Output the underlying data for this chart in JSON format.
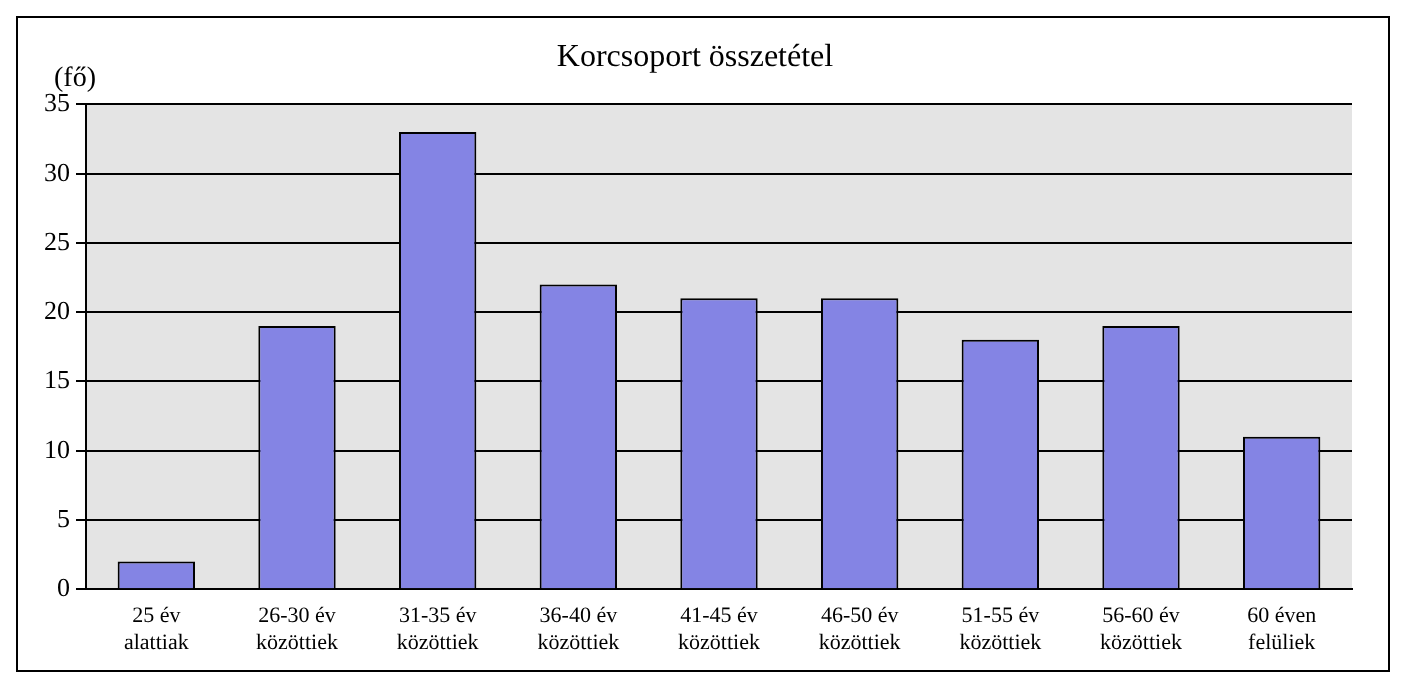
{
  "chart_data": {
    "type": "bar",
    "title": "Korcsoport összetétel",
    "ylabel": "(fő)",
    "categories": [
      "25 év alattiak",
      "26-30 év közöttiek",
      "31-35 év közöttiek",
      "36-40 év közöttiek",
      "41-45 év közöttiek",
      "46-50 év közöttiek",
      "51-55 év közöttiek",
      "56-60 év közöttiek",
      "60 éven felüliek"
    ],
    "values": [
      2,
      19,
      33,
      22,
      21,
      21,
      18,
      19,
      11
    ],
    "color": "#8484e4",
    "ylim": [
      0,
      35
    ],
    "yticks": [
      0,
      5,
      10,
      15,
      20,
      25,
      30,
      35
    ],
    "grid": "y",
    "legend": false
  }
}
